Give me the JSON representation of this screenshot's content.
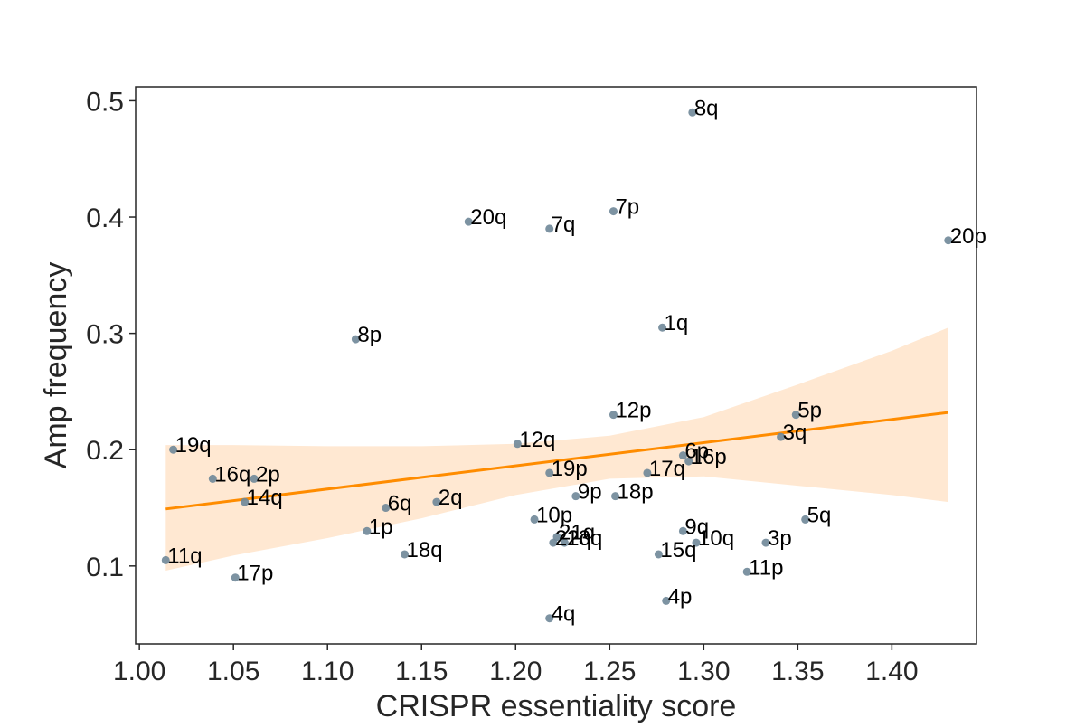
{
  "chart_data": {
    "type": "scatter",
    "title": "",
    "xlabel": "CRISPR essentiality score",
    "ylabel": "Amp frequency",
    "xlim": [
      0.998,
      1.445
    ],
    "ylim": [
      0.033,
      0.512
    ],
    "xticks": [
      1.0,
      1.05,
      1.1,
      1.15,
      1.2,
      1.25,
      1.3,
      1.35,
      1.4
    ],
    "xtick_labels": [
      "1.00",
      "1.05",
      "1.10",
      "1.15",
      "1.20",
      "1.25",
      "1.30",
      "1.35",
      "1.40"
    ],
    "yticks": [
      0.1,
      0.2,
      0.3,
      0.4,
      0.5
    ],
    "ytick_labels": [
      "0.1",
      "0.2",
      "0.3",
      "0.4",
      "0.5"
    ],
    "grid": false,
    "points": [
      {
        "label": "8q",
        "x": 1.294,
        "y": 0.49
      },
      {
        "label": "7p",
        "x": 1.252,
        "y": 0.405
      },
      {
        "label": "20q",
        "x": 1.175,
        "y": 0.396
      },
      {
        "label": "7q",
        "x": 1.218,
        "y": 0.39
      },
      {
        "label": "20p",
        "x": 1.43,
        "y": 0.38
      },
      {
        "label": "1q",
        "x": 1.278,
        "y": 0.305
      },
      {
        "label": "8p",
        "x": 1.115,
        "y": 0.295
      },
      {
        "label": "12p",
        "x": 1.252,
        "y": 0.23
      },
      {
        "label": "5p",
        "x": 1.349,
        "y": 0.23
      },
      {
        "label": "3q",
        "x": 1.341,
        "y": 0.211
      },
      {
        "label": "12q",
        "x": 1.201,
        "y": 0.205
      },
      {
        "label": "19q",
        "x": 1.018,
        "y": 0.2
      },
      {
        "label": "6p",
        "x": 1.289,
        "y": 0.195
      },
      {
        "label": "16p",
        "x": 1.292,
        "y": 0.19
      },
      {
        "label": "19p",
        "x": 1.218,
        "y": 0.18
      },
      {
        "label": "17q",
        "x": 1.27,
        "y": 0.18
      },
      {
        "label": "16q",
        "x": 1.039,
        "y": 0.175
      },
      {
        "label": "2p",
        "x": 1.061,
        "y": 0.175
      },
      {
        "label": "9p",
        "x": 1.232,
        "y": 0.16
      },
      {
        "label": "18p",
        "x": 1.253,
        "y": 0.16
      },
      {
        "label": "14q",
        "x": 1.056,
        "y": 0.155
      },
      {
        "label": "2q",
        "x": 1.158,
        "y": 0.155
      },
      {
        "label": "6q",
        "x": 1.131,
        "y": 0.15
      },
      {
        "label": "10p",
        "x": 1.21,
        "y": 0.14
      },
      {
        "label": "5q",
        "x": 1.354,
        "y": 0.14
      },
      {
        "label": "1p",
        "x": 1.121,
        "y": 0.13
      },
      {
        "label": "9q",
        "x": 1.289,
        "y": 0.13
      },
      {
        "label": "21q",
        "x": 1.222,
        "y": 0.125
      },
      {
        "label": "22q",
        "x": 1.22,
        "y": 0.12
      },
      {
        "label": "13q",
        "x": 1.226,
        "y": 0.12
      },
      {
        "label": "10q",
        "x": 1.296,
        "y": 0.12
      },
      {
        "label": "3p",
        "x": 1.333,
        "y": 0.12
      },
      {
        "label": "18q",
        "x": 1.141,
        "y": 0.11
      },
      {
        "label": "15q",
        "x": 1.276,
        "y": 0.11
      },
      {
        "label": "11q",
        "x": 1.014,
        "y": 0.105
      },
      {
        "label": "11p",
        "x": 1.323,
        "y": 0.095
      },
      {
        "label": "17p",
        "x": 1.051,
        "y": 0.09
      },
      {
        "label": "4p",
        "x": 1.28,
        "y": 0.07
      },
      {
        "label": "4q",
        "x": 1.218,
        "y": 0.055
      }
    ],
    "regression": {
      "x": [
        1.014,
        1.43
      ],
      "y": [
        0.149,
        0.232
      ],
      "ci_x": [
        1.014,
        1.05,
        1.1,
        1.15,
        1.2,
        1.25,
        1.3,
        1.35,
        1.4,
        1.43
      ],
      "ci_upper": [
        0.204,
        0.204,
        0.203,
        0.203,
        0.205,
        0.212,
        0.228,
        0.256,
        0.285,
        0.305
      ],
      "ci_lower": [
        0.096,
        0.109,
        0.124,
        0.141,
        0.161,
        0.175,
        0.177,
        0.169,
        0.161,
        0.155
      ]
    },
    "colors": {
      "point": "#6f8798",
      "line": "#ff8c00",
      "ci_band": "#ffe8d2",
      "axes": "#262626",
      "text": "#262626"
    }
  }
}
